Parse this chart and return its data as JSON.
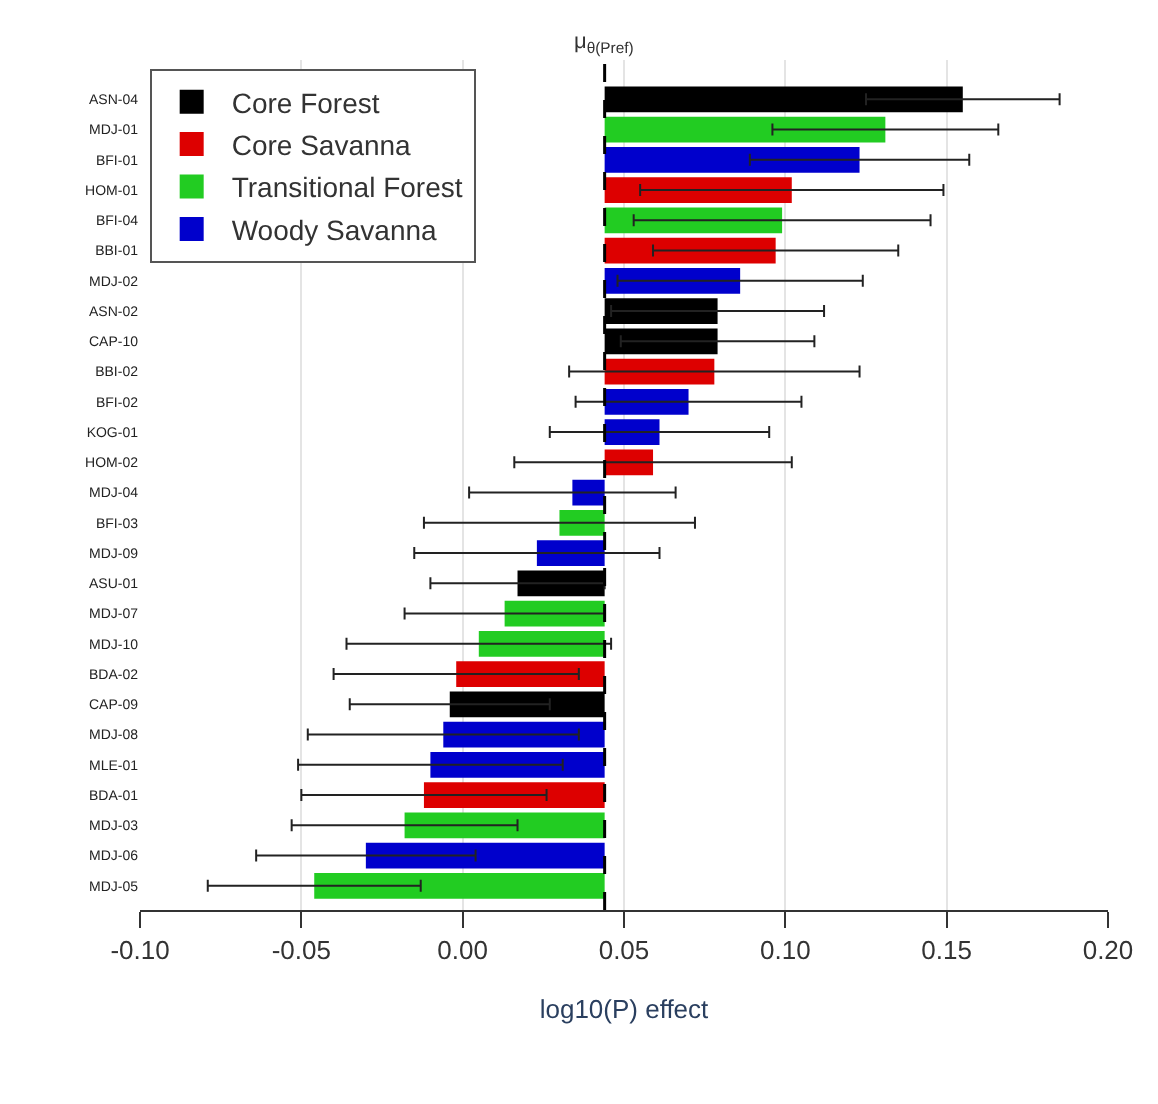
{
  "chart_data": {
    "type": "bar",
    "orientation": "horizontal",
    "xlabel": "log10(P) effect",
    "categories": [
      "ASN-04",
      "MDJ-01",
      "BFI-01",
      "HOM-01",
      "BFI-04",
      "BBI-01",
      "MDJ-02",
      "ASN-02",
      "CAP-10",
      "BBI-02",
      "BFI-02",
      "KOG-01",
      "HOM-02",
      "MDJ-04",
      "BFI-03",
      "MDJ-09",
      "ASU-01",
      "MDJ-07",
      "MDJ-10",
      "BDA-02",
      "CAP-09",
      "MDJ-08",
      "MLE-01",
      "BDA-01",
      "MDJ-03",
      "MDJ-06",
      "MDJ-05"
    ],
    "series": [
      {
        "name": "Core Forest",
        "color": "#000000",
        "base": [
          0.044,
          null,
          null,
          null,
          null,
          null,
          null,
          0.044,
          0.044,
          null,
          null,
          null,
          null,
          null,
          null,
          null,
          0.044,
          null,
          null,
          null,
          0.044,
          null,
          null,
          null,
          null,
          null,
          null
        ],
        "values": [
          0.111,
          null,
          null,
          null,
          null,
          null,
          null,
          0.035,
          0.035,
          null,
          null,
          null,
          null,
          null,
          null,
          null,
          -0.027,
          null,
          null,
          null,
          -0.048,
          null,
          null,
          null,
          null,
          null,
          null
        ],
        "errors": [
          [
            0.125,
            0.185
          ],
          null,
          null,
          null,
          null,
          null,
          null,
          [
            0.046,
            0.112
          ],
          [
            0.049,
            0.109
          ],
          null,
          null,
          null,
          null,
          null,
          null,
          null,
          [
            -0.01,
            0.044
          ],
          null,
          null,
          null,
          [
            -0.035,
            0.027
          ],
          null,
          null,
          null,
          null,
          null,
          null
        ]
      },
      {
        "name": "Core Savanna",
        "color": "#dd0000",
        "base": [
          null,
          null,
          null,
          0.044,
          null,
          0.044,
          null,
          null,
          null,
          0.044,
          null,
          null,
          0.044,
          null,
          null,
          null,
          null,
          null,
          null,
          0.044,
          null,
          null,
          null,
          0.044,
          null,
          null,
          null
        ],
        "values": [
          null,
          null,
          null,
          0.058,
          null,
          0.053,
          null,
          null,
          null,
          0.034,
          null,
          null,
          0.015,
          null,
          null,
          null,
          null,
          null,
          null,
          -0.046,
          null,
          null,
          null,
          -0.056,
          null,
          null,
          null
        ],
        "errors": [
          null,
          null,
          null,
          [
            0.055,
            0.149
          ],
          null,
          [
            0.059,
            0.135
          ],
          null,
          null,
          null,
          [
            0.033,
            0.123
          ],
          null,
          null,
          [
            0.016,
            0.102
          ],
          null,
          null,
          null,
          null,
          null,
          null,
          [
            -0.04,
            0.036
          ],
          null,
          null,
          null,
          [
            -0.05,
            0.026
          ],
          null,
          null,
          null
        ]
      },
      {
        "name": "Transitional Forest",
        "color": "#22cc22",
        "base": [
          null,
          0.044,
          null,
          null,
          0.044,
          null,
          null,
          null,
          null,
          null,
          null,
          null,
          null,
          null,
          0.044,
          null,
          null,
          0.044,
          0.044,
          null,
          null,
          null,
          null,
          null,
          0.044,
          null,
          0.044
        ],
        "values": [
          null,
          0.087,
          null,
          null,
          0.055,
          null,
          null,
          null,
          null,
          null,
          null,
          null,
          null,
          null,
          -0.014,
          null,
          null,
          -0.031,
          -0.039,
          null,
          null,
          null,
          null,
          null,
          -0.062,
          null,
          -0.09
        ],
        "errors": [
          null,
          [
            0.096,
            0.166
          ],
          null,
          null,
          [
            0.053,
            0.145
          ],
          null,
          null,
          null,
          null,
          null,
          null,
          null,
          null,
          null,
          [
            -0.012,
            0.072
          ],
          null,
          null,
          [
            -0.018,
            0.044
          ],
          [
            -0.036,
            0.046
          ],
          null,
          null,
          null,
          null,
          null,
          [
            -0.053,
            0.017
          ],
          null,
          [
            -0.079,
            -0.013
          ]
        ]
      },
      {
        "name": "Woody Savanna",
        "color": "#0000cc",
        "base": [
          null,
          null,
          0.044,
          null,
          null,
          null,
          0.044,
          null,
          null,
          null,
          0.044,
          0.044,
          null,
          0.044,
          null,
          0.044,
          null,
          null,
          null,
          null,
          null,
          0.044,
          0.044,
          null,
          null,
          0.044,
          null
        ],
        "values": [
          null,
          null,
          0.079,
          null,
          null,
          null,
          0.042,
          null,
          null,
          null,
          0.026,
          0.017,
          null,
          -0.01,
          null,
          -0.021,
          null,
          null,
          null,
          null,
          null,
          -0.05,
          -0.054,
          null,
          null,
          -0.074,
          null
        ],
        "errors": [
          null,
          null,
          [
            0.089,
            0.157
          ],
          null,
          null,
          null,
          [
            0.048,
            0.124
          ],
          null,
          null,
          null,
          [
            0.035,
            0.105
          ],
          [
            0.027,
            0.095
          ],
          null,
          [
            0.002,
            0.066
          ],
          null,
          [
            -0.015,
            0.061
          ],
          null,
          null,
          null,
          null,
          null,
          [
            -0.048,
            0.036
          ],
          [
            -0.051,
            0.031
          ],
          null,
          null,
          [
            -0.064,
            0.004
          ],
          null
        ]
      }
    ],
    "xlim": [
      -0.1,
      0.2
    ],
    "xticks": [
      {
        "value": -0.1,
        "label": "-0.10"
      },
      {
        "value": -0.05,
        "label": "-0.05"
      },
      {
        "value": 0,
        "label": "0.00"
      },
      {
        "value": 0.05,
        "label": "0.05"
      },
      {
        "value": 0.1,
        "label": "0.10"
      },
      {
        "value": 0.15,
        "label": "0.15"
      },
      {
        "value": 0.2,
        "label": "0.20"
      }
    ],
    "ref_lines": [
      {
        "axis": "x",
        "value": 0.044,
        "label": "μ$_{θ(Pref)}$",
        "color": "#000000",
        "line_style": "dashed"
      }
    ],
    "grid": "x",
    "legend": "top left"
  }
}
